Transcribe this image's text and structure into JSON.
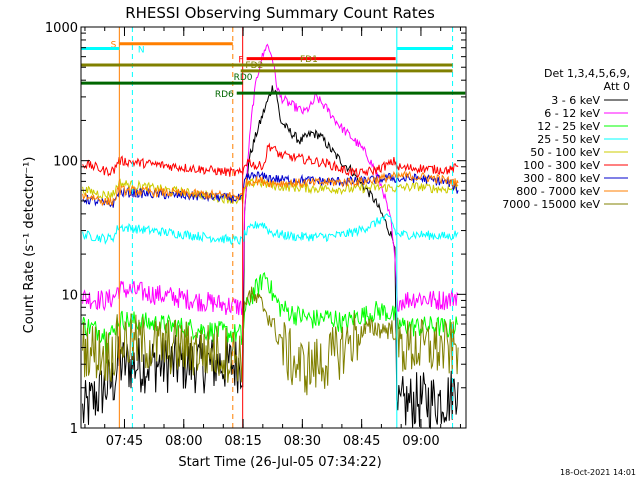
{
  "chart_data": {
    "type": "line",
    "title": "RHESSI Observing Summary Count Rates",
    "xlabel": "Start Time (26-Jul-05 07:34:22)",
    "ylabel": "Count Rate (s⁻¹ detector⁻¹)",
    "yscale": "log",
    "ylim": [
      1,
      1000
    ],
    "xlim_minutes": [
      -0.4,
      97
    ],
    "x_ticks": [
      {
        "label": "07:45",
        "t": 10.6
      },
      {
        "label": "08:00",
        "t": 25.6
      },
      {
        "label": "08:15",
        "t": 40.6
      },
      {
        "label": "08:30",
        "t": 55.6
      },
      {
        "label": "08:45",
        "t": 70.6
      },
      {
        "label": "09:00",
        "t": 85.6
      }
    ],
    "y_ticks": [
      {
        "label": "1",
        "v": 1
      },
      {
        "label": "10",
        "v": 10
      },
      {
        "label": "100",
        "v": 100
      },
      {
        "label": "1000",
        "v": 1000
      }
    ],
    "legend": {
      "title_line1": "Det 1,3,4,5,6,9,",
      "title_line2": "Att 0",
      "position": "right"
    },
    "series": [
      {
        "name": "3 - 6 keV",
        "color": "#000000",
        "points": [
          [
            0,
            1.3
          ],
          [
            4,
            1.8
          ],
          [
            8,
            2.3
          ],
          [
            9,
            3
          ],
          [
            40.5,
            3
          ],
          [
            41,
            40
          ],
          [
            42,
            100
          ],
          [
            44,
            160
          ],
          [
            46,
            240
          ],
          [
            48,
            350
          ],
          [
            49,
            330
          ],
          [
            50,
            200
          ],
          [
            52,
            170
          ],
          [
            55,
            140
          ],
          [
            58,
            160
          ],
          [
            60,
            155
          ],
          [
            62,
            130
          ],
          [
            64,
            110
          ],
          [
            66,
            95
          ],
          [
            68,
            85
          ],
          [
            70,
            70
          ],
          [
            72,
            60
          ],
          [
            74,
            50
          ],
          [
            76,
            38
          ],
          [
            78,
            28
          ],
          [
            79,
            24
          ],
          [
            79.5,
            1.2
          ],
          [
            81,
            1.5
          ],
          [
            85,
            1.6
          ],
          [
            89,
            1.6
          ],
          [
            93,
            1.7
          ],
          [
            95,
            2.2
          ]
        ]
      },
      {
        "name": "6 - 12 keV",
        "color": "#ff00ff",
        "points": [
          [
            0,
            9.5
          ],
          [
            3,
            9.2
          ],
          [
            6,
            9.0
          ],
          [
            8,
            9.5
          ],
          [
            9,
            11
          ],
          [
            40.5,
            8
          ],
          [
            41,
            40
          ],
          [
            42,
            120
          ],
          [
            43,
            250
          ],
          [
            44,
            400
          ],
          [
            45,
            550
          ],
          [
            46,
            650
          ],
          [
            46.5,
            750
          ],
          [
            47,
            700
          ],
          [
            48,
            600
          ],
          [
            49,
            380
          ],
          [
            50,
            300
          ],
          [
            52,
            270
          ],
          [
            54,
            250
          ],
          [
            56,
            230
          ],
          [
            58,
            260
          ],
          [
            59,
            300
          ],
          [
            60,
            280
          ],
          [
            62,
            240
          ],
          [
            64,
            200
          ],
          [
            66,
            170
          ],
          [
            68,
            150
          ],
          [
            70,
            130
          ],
          [
            72,
            110
          ],
          [
            74,
            85
          ],
          [
            76,
            60
          ],
          [
            78,
            35
          ],
          [
            79,
            18
          ],
          [
            79.5,
            9
          ],
          [
            81,
            9
          ],
          [
            85,
            9.5
          ],
          [
            89,
            9
          ],
          [
            93,
            9.2
          ],
          [
            95,
            10
          ]
        ]
      },
      {
        "name": "12 - 25 keV",
        "color": "#00ff00",
        "points": [
          [
            0,
            6
          ],
          [
            3,
            5.5
          ],
          [
            6,
            5
          ],
          [
            8,
            5.2
          ],
          [
            9,
            6.5
          ],
          [
            40.5,
            5
          ],
          [
            41,
            7
          ],
          [
            42,
            9
          ],
          [
            43,
            10
          ],
          [
            44,
            11
          ],
          [
            45,
            12
          ],
          [
            46,
            14
          ],
          [
            47,
            13
          ],
          [
            48,
            10
          ],
          [
            50,
            8
          ],
          [
            52,
            7.5
          ],
          [
            54,
            7
          ],
          [
            56,
            6.8
          ],
          [
            58,
            6.5
          ],
          [
            60,
            6.5
          ],
          [
            62,
            6.8
          ],
          [
            64,
            6.5
          ],
          [
            66,
            6
          ],
          [
            68,
            6.5
          ],
          [
            70,
            7
          ],
          [
            72,
            7
          ],
          [
            74,
            7.5
          ],
          [
            76,
            7.5
          ],
          [
            78,
            7.2
          ],
          [
            79,
            6.8
          ],
          [
            79.5,
            6
          ],
          [
            81,
            5.8
          ],
          [
            85,
            5.7
          ],
          [
            89,
            5.8
          ],
          [
            93,
            5.5
          ],
          [
            95,
            6
          ]
        ]
      },
      {
        "name": "25 - 50 keV",
        "color": "#00ffff",
        "points": [
          [
            0,
            28
          ],
          [
            3,
            27
          ],
          [
            6,
            26
          ],
          [
            8,
            27
          ],
          [
            9,
            32
          ],
          [
            40.5,
            25
          ],
          [
            41,
            28
          ],
          [
            42,
            30
          ],
          [
            43,
            32
          ],
          [
            44,
            33
          ],
          [
            45,
            34
          ],
          [
            46,
            33
          ],
          [
            47,
            30
          ],
          [
            48,
            29
          ],
          [
            50,
            28
          ],
          [
            54,
            27
          ],
          [
            58,
            27
          ],
          [
            62,
            27
          ],
          [
            66,
            28
          ],
          [
            70,
            30
          ],
          [
            72,
            32
          ],
          [
            74,
            34
          ],
          [
            76,
            37
          ],
          [
            78,
            37
          ],
          [
            79,
            30
          ],
          [
            79.5,
            28
          ],
          [
            81,
            28
          ],
          [
            85,
            28
          ],
          [
            89,
            27.5
          ],
          [
            93,
            27
          ],
          [
            95,
            29
          ]
        ]
      },
      {
        "name": "50 - 100 keV",
        "color": "#cccc00",
        "points": [
          [
            0,
            60
          ],
          [
            3,
            58
          ],
          [
            6,
            55
          ],
          [
            8,
            57
          ],
          [
            9,
            68
          ],
          [
            40.5,
            50
          ],
          [
            41,
            60
          ],
          [
            42,
            66
          ],
          [
            44,
            70
          ],
          [
            46,
            67
          ],
          [
            48,
            65
          ],
          [
            50,
            64
          ],
          [
            54,
            63
          ],
          [
            58,
            62
          ],
          [
            62,
            62
          ],
          [
            66,
            61
          ],
          [
            70,
            62
          ],
          [
            74,
            63
          ],
          [
            78,
            63
          ],
          [
            79,
            62
          ],
          [
            79.5,
            62
          ],
          [
            81,
            63
          ],
          [
            85,
            64
          ],
          [
            89,
            62
          ],
          [
            93,
            61
          ],
          [
            95,
            65
          ]
        ]
      },
      {
        "name": "100 - 300 keV",
        "color": "#ff0000",
        "points": [
          [
            0,
            95
          ],
          [
            3,
            90
          ],
          [
            6,
            83
          ],
          [
            8,
            85
          ],
          [
            9,
            100
          ],
          [
            40.5,
            80
          ],
          [
            41,
            95
          ],
          [
            42,
            100
          ],
          [
            43,
            95
          ],
          [
            44,
            90
          ],
          [
            45,
            92
          ],
          [
            46,
            95
          ],
          [
            47,
            130
          ],
          [
            48,
            125
          ],
          [
            50,
            110
          ],
          [
            54,
            105
          ],
          [
            58,
            100
          ],
          [
            62,
            95
          ],
          [
            66,
            85
          ],
          [
            70,
            80
          ],
          [
            74,
            85
          ],
          [
            78,
            95
          ],
          [
            79,
            100
          ],
          [
            79.5,
            90
          ],
          [
            81,
            88
          ],
          [
            85,
            88
          ],
          [
            89,
            86
          ],
          [
            93,
            85
          ],
          [
            95,
            90
          ]
        ]
      },
      {
        "name": "300 - 800 keV",
        "color": "#0000cc",
        "points": [
          [
            0,
            52
          ],
          [
            3,
            50
          ],
          [
            6,
            47
          ],
          [
            8,
            48
          ],
          [
            9,
            58
          ],
          [
            40.5,
            52
          ],
          [
            41,
            70
          ],
          [
            42,
            75
          ],
          [
            44,
            78
          ],
          [
            46,
            75
          ],
          [
            48,
            74
          ],
          [
            50,
            72
          ],
          [
            54,
            72
          ],
          [
            58,
            71
          ],
          [
            62,
            70
          ],
          [
            66,
            70
          ],
          [
            70,
            70
          ],
          [
            74,
            72
          ],
          [
            78,
            75
          ],
          [
            79,
            74
          ],
          [
            79.5,
            72
          ],
          [
            81,
            73
          ],
          [
            85,
            74
          ],
          [
            89,
            71
          ],
          [
            93,
            68
          ],
          [
            95,
            60
          ]
        ]
      },
      {
        "name": "800 - 7000 keV",
        "color": "#ff7f00",
        "points": [
          [
            0,
            55
          ],
          [
            3,
            53
          ],
          [
            6,
            49
          ],
          [
            8,
            50
          ],
          [
            9,
            60
          ],
          [
            40.5,
            54
          ],
          [
            41,
            68
          ],
          [
            42,
            70
          ],
          [
            44,
            71
          ],
          [
            46,
            70
          ],
          [
            48,
            68
          ],
          [
            50,
            68
          ],
          [
            54,
            68
          ],
          [
            58,
            68
          ],
          [
            62,
            69
          ],
          [
            66,
            69
          ],
          [
            70,
            70
          ],
          [
            74,
            72
          ],
          [
            78,
            75
          ],
          [
            79,
            76
          ],
          [
            79.5,
            76
          ],
          [
            81,
            77
          ],
          [
            85,
            76
          ],
          [
            89,
            74
          ],
          [
            93,
            70
          ],
          [
            95,
            68
          ]
        ]
      },
      {
        "name": "7000 - 15000 keV",
        "color": "#808000",
        "points": [
          [
            0,
            4
          ],
          [
            3,
            3.8
          ],
          [
            6,
            3.5
          ],
          [
            8,
            3.7
          ],
          [
            9,
            4.5
          ],
          [
            40.5,
            3.5
          ],
          [
            41,
            9
          ],
          [
            42,
            10
          ],
          [
            44,
            9
          ],
          [
            46,
            8
          ],
          [
            48,
            6
          ],
          [
            50,
            4.5
          ],
          [
            52,
            3.5
          ],
          [
            54,
            3
          ],
          [
            56,
            2.8
          ],
          [
            58,
            2.9
          ],
          [
            60,
            3
          ],
          [
            62,
            3.2
          ],
          [
            64,
            3.6
          ],
          [
            66,
            4
          ],
          [
            68,
            4.6
          ],
          [
            70,
            5
          ],
          [
            72,
            5.5
          ],
          [
            74,
            5.6
          ],
          [
            76,
            5.5
          ],
          [
            78,
            5.5
          ],
          [
            79,
            5.4
          ],
          [
            79.5,
            4.2
          ],
          [
            81,
            4
          ],
          [
            85,
            4
          ],
          [
            89,
            4
          ],
          [
            93,
            3.8
          ],
          [
            95,
            4
          ]
        ]
      }
    ],
    "vertical_markers": [
      {
        "t": 9.3,
        "color": "#ff7f00",
        "style": "solid"
      },
      {
        "t": 12.6,
        "color": "#00ffff",
        "style": "dashed"
      },
      {
        "t": 38.0,
        "color": "#ff7f00",
        "style": "dashed"
      },
      {
        "t": 40.5,
        "color": "#ff0000",
        "style": "solid"
      },
      {
        "t": 79.5,
        "color": "#00ffff",
        "style": "solid"
      },
      {
        "t": 93.6,
        "color": "#00ffff",
        "style": "dashed"
      }
    ],
    "flag_bars": [
      {
        "label": "S",
        "label_color": "#ff7f00",
        "color": "#ff7f00",
        "from": 9.3,
        "to": 38.0,
        "level": 750,
        "label_side": "left"
      },
      {
        "label": "N",
        "label_color": "#00ffff",
        "color": "#00ffff",
        "from": -0.4,
        "to": 9.3,
        "level": 690,
        "label_side": "right_of_start",
        "label_t": 14.0
      },
      {
        "label": "",
        "color": "#00ffff",
        "from": 79.5,
        "to": 93.6,
        "level": 690
      },
      {
        "label": "F",
        "label_color": "#ff0000",
        "color": "#ff0000",
        "from": 41.5,
        "to": 79.2,
        "level": 580,
        "label_side": "left"
      },
      {
        "label": "FD1",
        "label_color": "#808000",
        "color": "#808000",
        "from": -0.4,
        "to": 93.6,
        "level": 520,
        "label_side": "above",
        "label_t": 55.0
      },
      {
        "label": "FD2",
        "label_color": "#808000",
        "color": "#808000",
        "from": 40.0,
        "to": 93.6,
        "level": 470,
        "label_side": "above",
        "label_t": 41.2
      },
      {
        "label": "RD0",
        "label_color": "#006600",
        "color": "#006600",
        "from": -0.4,
        "to": 40.5,
        "level": 380,
        "label_side": "above",
        "label_t": 38.2
      },
      {
        "label": "RD6",
        "label_color": "#006600",
        "color": "#006600",
        "from": 39.0,
        "to": 96.8,
        "level": 320,
        "label_side": "left"
      }
    ],
    "footer_date": "18-Oct-2021 14:01"
  }
}
